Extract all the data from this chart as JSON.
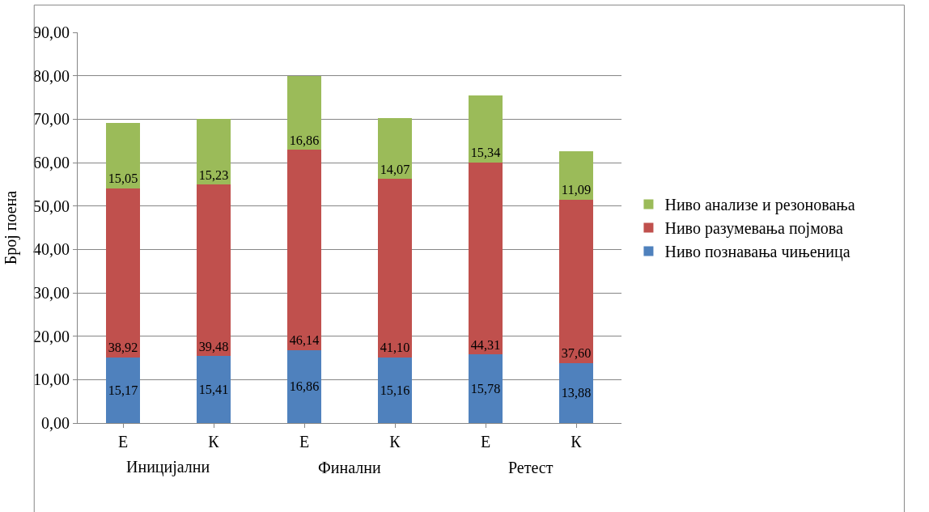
{
  "chart_data": {
    "type": "bar",
    "stacked": true,
    "ylabel": "Број поена",
    "categories": [
      "Е",
      "К",
      "Е",
      "К",
      "Е",
      "К"
    ],
    "annotations": [
      "Иницијални",
      "Финални",
      "Ретест"
    ],
    "series": [
      {
        "name": "Ниво познавања чињеница",
        "color": "#4f81bd",
        "values": [
          15.17,
          15.41,
          16.86,
          15.16,
          15.78,
          13.88
        ],
        "value_labels": [
          "15,17",
          "15,41",
          "16,86",
          "15,16",
          "15,78",
          "13,88"
        ]
      },
      {
        "name": "Ниво разумевања појмова",
        "color": "#c0504d",
        "values": [
          38.92,
          39.48,
          46.14,
          41.1,
          44.31,
          37.6
        ],
        "value_labels": [
          "38,92",
          "39,48",
          "46,14",
          "41,10",
          "44,31",
          "37,60"
        ]
      },
      {
        "name": "Ниво анализе и резоновања",
        "color": "#9bbb59",
        "values": [
          15.05,
          15.23,
          16.86,
          14.07,
          15.34,
          11.09
        ],
        "value_labels": [
          "15,05",
          "15,23",
          "16,86",
          "14,07",
          "15,34",
          "11,09"
        ]
      }
    ],
    "ylim": [
      0,
      90
    ],
    "yticks": [
      {
        "value": 0,
        "label": "0,00"
      },
      {
        "value": 10,
        "label": "10,00"
      },
      {
        "value": 20,
        "label": "20,00"
      },
      {
        "value": 30,
        "label": "30,00"
      },
      {
        "value": 40,
        "label": "40,00"
      },
      {
        "value": 50,
        "label": "50,00"
      },
      {
        "value": 60,
        "label": "60,00"
      },
      {
        "value": 70,
        "label": "70,00"
      },
      {
        "value": 80,
        "label": "80,00"
      },
      {
        "value": 90,
        "label": "90,00"
      }
    ],
    "grid": "y",
    "legend": "right"
  }
}
